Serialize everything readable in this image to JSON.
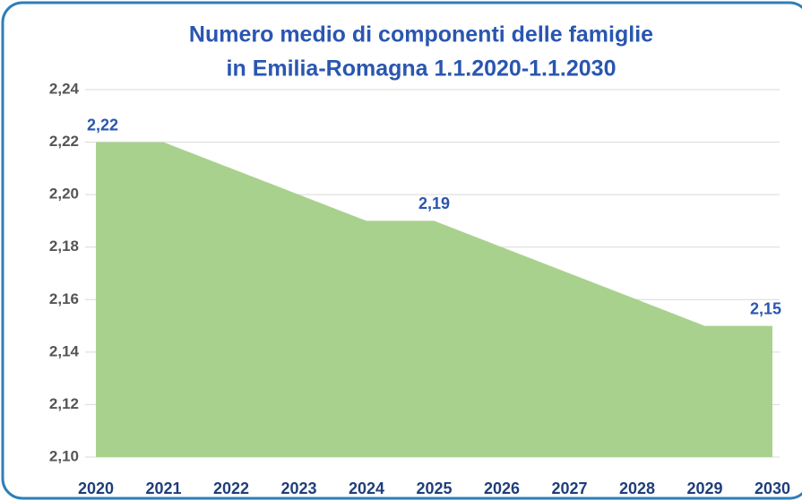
{
  "chart_data": {
    "type": "area",
    "title": [
      "Numero medio di componenti delle famiglie",
      "in Emilia-Romagna 1.1.2020-1.1.2030"
    ],
    "categories": [
      "2020",
      "2021",
      "2022",
      "2023",
      "2024",
      "2025",
      "2026",
      "2027",
      "2028",
      "2029",
      "2030"
    ],
    "values": [
      2.22,
      2.22,
      2.21,
      2.2,
      2.19,
      2.19,
      2.18,
      2.17,
      2.16,
      2.15,
      2.15
    ],
    "value_labels": [
      "2,22",
      null,
      null,
      null,
      null,
      "2,19",
      null,
      null,
      null,
      null,
      "2,15"
    ],
    "color": "#a9d18e",
    "ylim": [
      2.1,
      2.24
    ],
    "yticks": [
      {
        "value": 2.1,
        "label": "2,10"
      },
      {
        "value": 2.12,
        "label": "2,12"
      },
      {
        "value": 2.14,
        "label": "2,14"
      },
      {
        "value": 2.16,
        "label": "2,16"
      },
      {
        "value": 2.18,
        "label": "2,18"
      },
      {
        "value": 2.2,
        "label": "2,20"
      },
      {
        "value": 2.22,
        "label": "2,22"
      },
      {
        "value": 2.24,
        "label": "2,24"
      }
    ],
    "grid": true
  }
}
